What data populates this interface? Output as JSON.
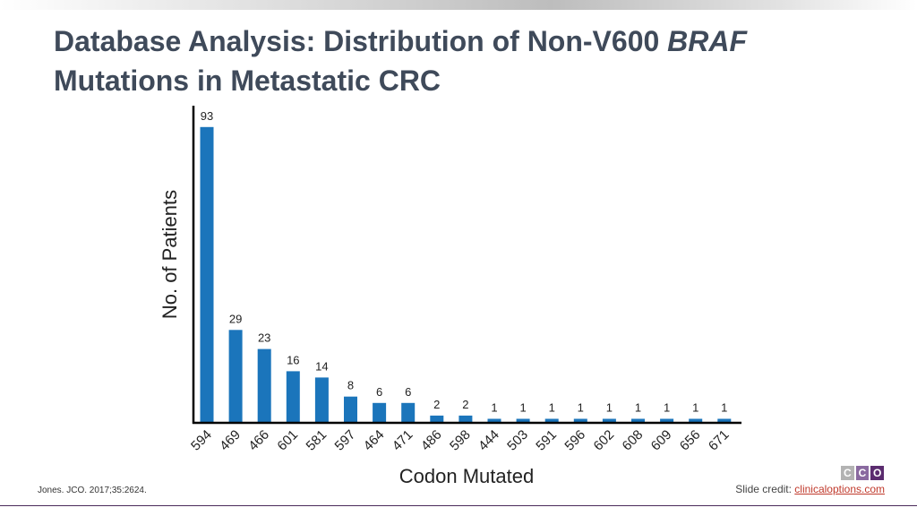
{
  "slide": {
    "title_line1": "Database Analysis: Distribution of Non-V600 ",
    "title_italic": "BRAF",
    "title_line2": "Mutations in Metastatic CRC",
    "citation": "Jones. JCO. 2017;35:2624.",
    "credit_label": "Slide credit: ",
    "credit_link": "clinicaloptions.com",
    "logo_letters": [
      "C",
      "C",
      "O"
    ],
    "logo_colors": [
      "#b3b3b3",
      "#8a6aa0",
      "#5b2c6f"
    ]
  },
  "chart_data": {
    "type": "bar",
    "categories": [
      "594",
      "469",
      "466",
      "601",
      "581",
      "597",
      "464",
      "471",
      "486",
      "598",
      "444",
      "503",
      "591",
      "596",
      "602",
      "608",
      "609",
      "656",
      "671"
    ],
    "values": [
      93,
      29,
      23,
      16,
      14,
      8,
      6,
      6,
      2,
      2,
      1,
      1,
      1,
      1,
      1,
      1,
      1,
      1,
      1
    ],
    "title": "",
    "xlabel": "Codon Mutated",
    "ylabel": "No. of Patients",
    "ylim": [
      0,
      100
    ],
    "grid": false,
    "legend": "none",
    "bar_color": "#1b75bb"
  }
}
